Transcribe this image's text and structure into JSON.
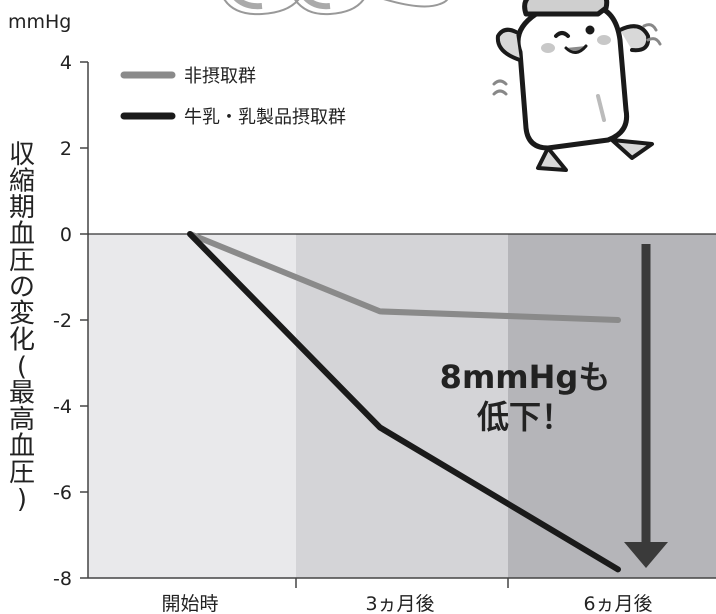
{
  "chart_data": {
    "type": "line",
    "y_unit": "mmHg",
    "ylabel": "収縮期血圧の変化(最高血圧)",
    "ylim": [
      -8,
      4
    ],
    "yticks": [
      4,
      2,
      0,
      -2,
      -4,
      -6,
      -8
    ],
    "categories": [
      "開始時",
      "3ヵ月後",
      "6ヵ月後"
    ],
    "series": [
      {
        "name": "非摂取群",
        "values": [
          0,
          -1.8,
          -2.0
        ],
        "color": "#8a8a8a"
      },
      {
        "name": "牛乳・乳製品摂取群",
        "values": [
          0,
          -4.5,
          -7.8
        ],
        "color": "#1a1a1a"
      }
    ],
    "annotation": {
      "line1": "8mmHgも",
      "line2": "低下！"
    },
    "period_shading": [
      "#e9e9eb",
      "#d4d4d7",
      "#b5b5b9"
    ],
    "grid": false,
    "legend_position": "top-left",
    "decoration": "milk-bottle-mascot-illustration"
  }
}
